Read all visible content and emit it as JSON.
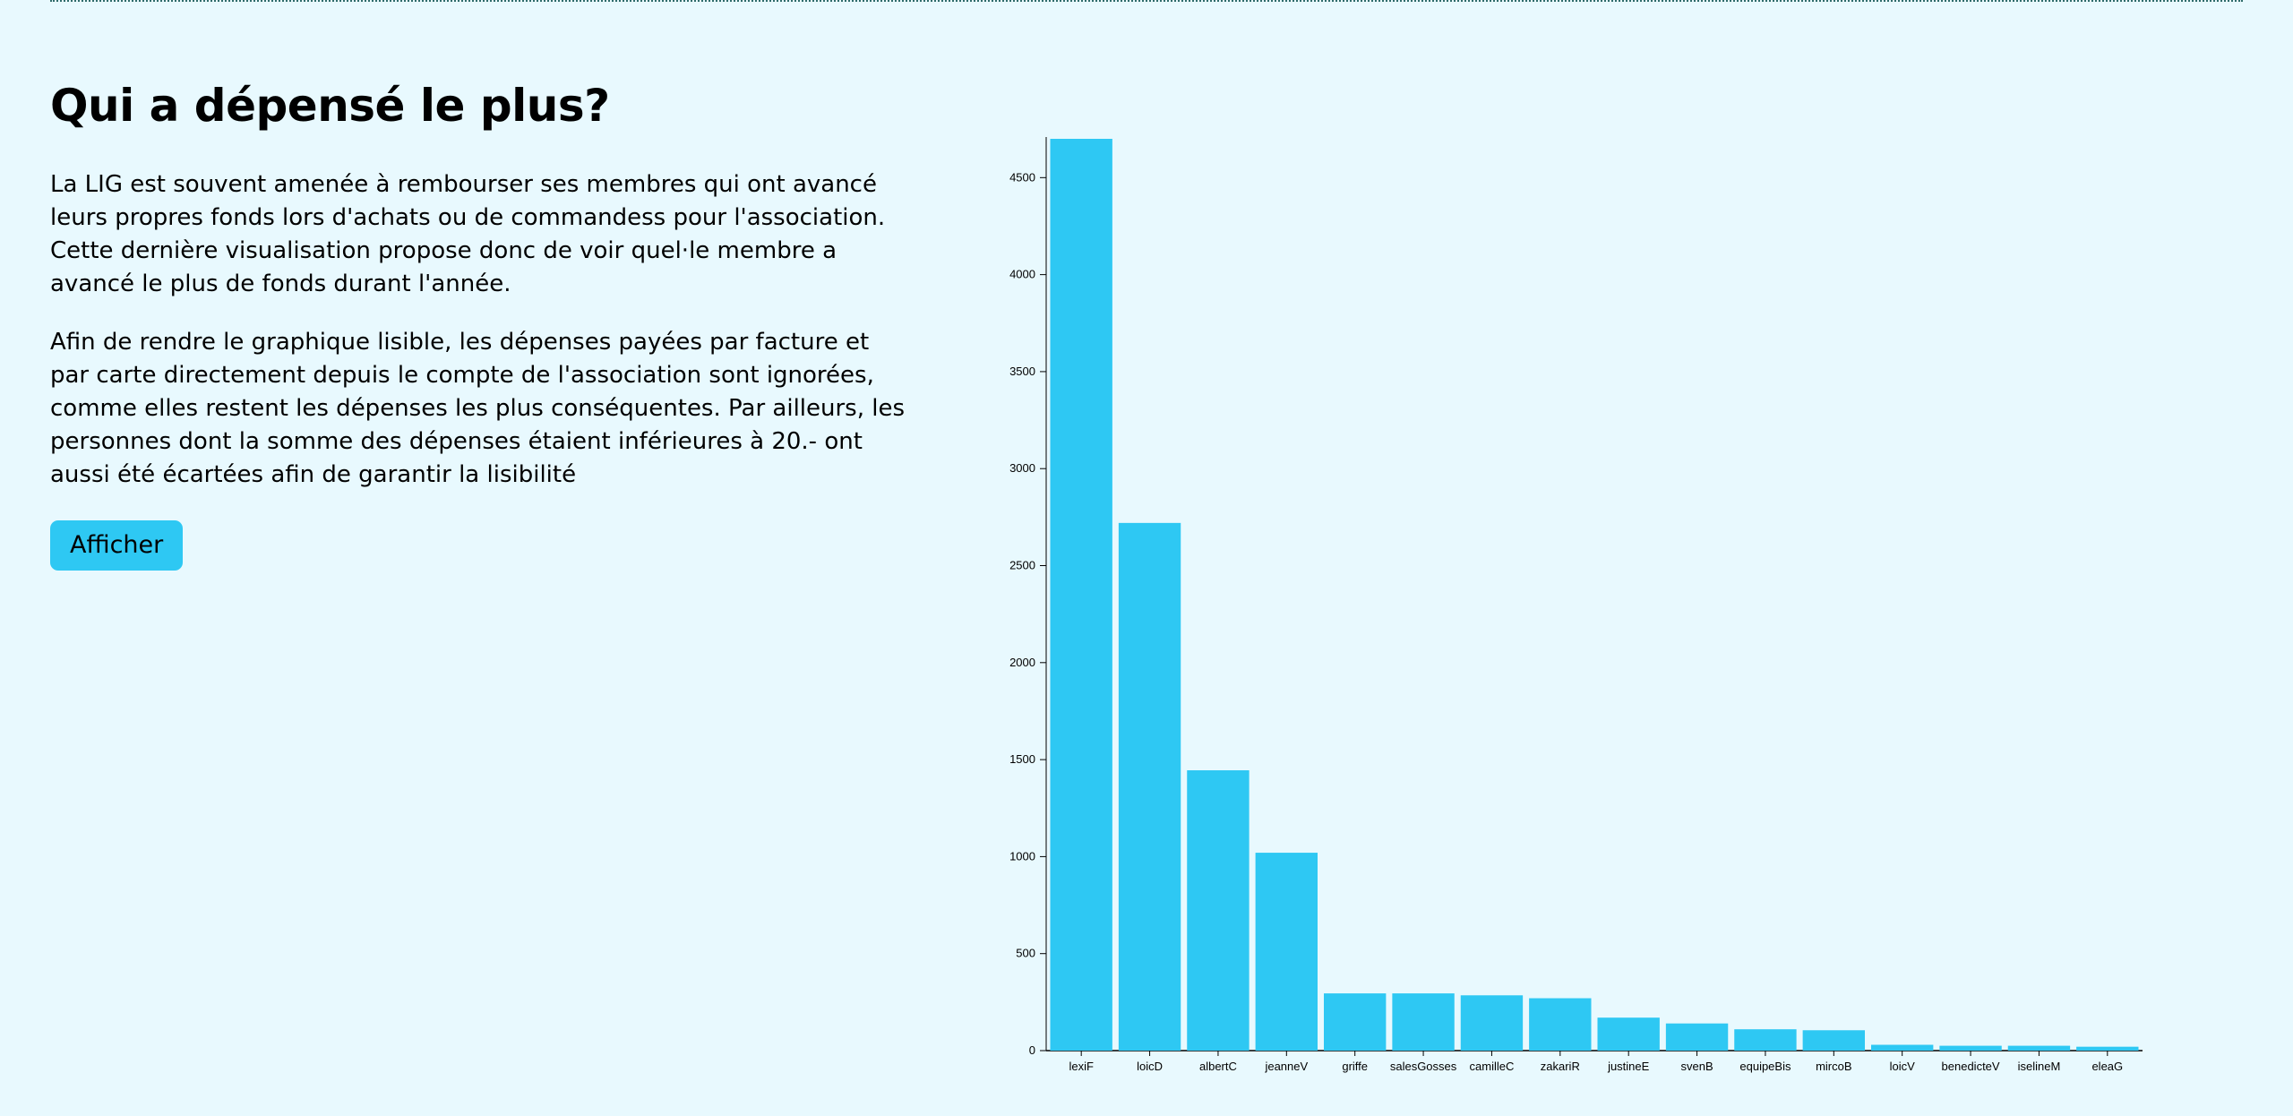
{
  "page": {
    "title": "Qui a dépensé le plus?",
    "paragraphs": [
      "La LIG est souvent amenée à rembourser ses membres qui ont avancé leurs propres fonds lors d'achats ou de commandess pour l'association. Cette dernière visualisation propose donc de voir quel·le membre a avancé le plus de fonds durant l'année.",
      "Afin de rendre le graphique lisible, les dépenses payées par facture et par carte directement depuis le compte de l'association sont ignorées, comme elles restent les dépenses les plus conséquentes. Par ailleurs, les personnes dont la somme des dépenses étaient inférieures à 20.- ont aussi été écartées afin de garantir la lisibilité"
    ],
    "button_label": "Afficher"
  },
  "colors": {
    "background": "#e8f9fe",
    "accent": "#2ec8f3",
    "text": "#000000"
  },
  "chart_data": {
    "type": "bar",
    "title": "",
    "xlabel": "",
    "ylabel": "",
    "categories": [
      "lexiF",
      "loicD",
      "albertC",
      "jeanneV",
      "griffe",
      "salesGosses",
      "camilleC",
      "zakariR",
      "justineE",
      "svenB",
      "equipeBis",
      "mircoB",
      "loicV",
      "benedicteV",
      "iselineM",
      "eleaG"
    ],
    "values": [
      4700,
      2720,
      1445,
      1020,
      295,
      295,
      285,
      270,
      170,
      140,
      110,
      105,
      30,
      25,
      25,
      20
    ],
    "ylim": [
      0,
      4700
    ],
    "yticks": [
      0,
      500,
      1000,
      1500,
      2000,
      2500,
      3000,
      3500,
      4000,
      4500
    ],
    "grid": false,
    "legend": "none",
    "bar_color": "#2ec8f3"
  }
}
